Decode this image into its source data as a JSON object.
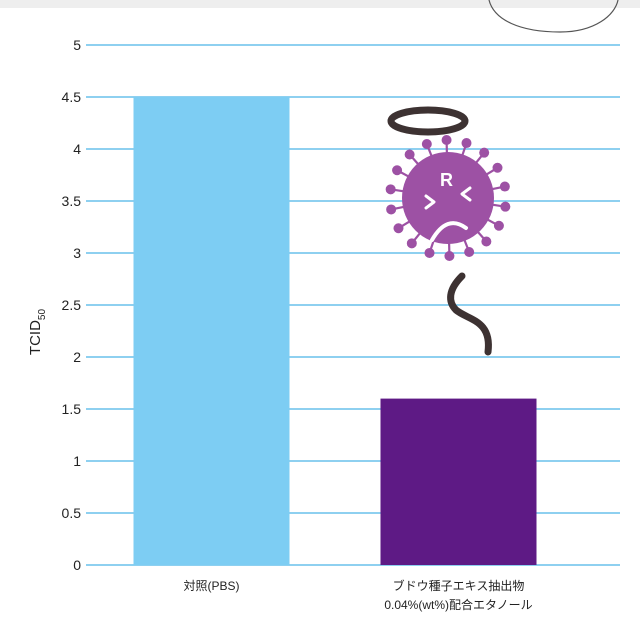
{
  "chart_data": {
    "type": "bar",
    "ylabel": "TCID",
    "ylabel_subscript": "50",
    "ylim": [
      0,
      5
    ],
    "yticks": [
      "0",
      "0.5",
      "1",
      "1.5",
      "2",
      "2.5",
      "3",
      "3.5",
      "4",
      "4.5",
      "5"
    ],
    "grid": true,
    "categories": [
      {
        "lines": [
          "対照(PBS)"
        ]
      },
      {
        "lines": [
          "ブドウ種子エキス抽出物",
          "0.04%(wt%)配合エタノール"
        ]
      }
    ],
    "values": [
      4.5,
      1.6
    ],
    "colors": [
      "#7dcdf3",
      "#5e1a85"
    ],
    "gridline_color": "#4bb4e6"
  },
  "illustration": {
    "name": "defeated-virus-icon",
    "letter": "R",
    "body_color": "#9d51a4",
    "halo_color": "#3d3232"
  }
}
